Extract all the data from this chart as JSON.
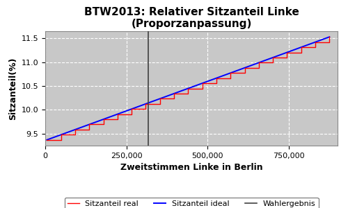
{
  "title": "BTW2013: Relativer Sitzanteil Linke\n(Proporzanpassung)",
  "xlabel": "Zweitstimmen Linke in Berlin",
  "ylabel": "Sitzanteil(%)",
  "x_min": 0,
  "x_max": 900000,
  "y_min": 9.25,
  "y_max": 11.65,
  "vline_x": 318000,
  "vline_color": "#404040",
  "background_color": "#c8c8c8",
  "grid_color": "white",
  "ideal_color": "blue",
  "real_color": "red",
  "vline_label": "Wahlergebnis",
  "ideal_label": "Sitzanteil ideal",
  "real_label": "Sitzanteil real",
  "yticks": [
    9.5,
    10.0,
    10.5,
    11.0,
    11.5
  ],
  "xticks": [
    0,
    250000,
    500000,
    750000
  ],
  "num_steps": 20,
  "x_start": 5000,
  "x_end": 875000,
  "y_start": 9.37,
  "y_end": 11.53
}
